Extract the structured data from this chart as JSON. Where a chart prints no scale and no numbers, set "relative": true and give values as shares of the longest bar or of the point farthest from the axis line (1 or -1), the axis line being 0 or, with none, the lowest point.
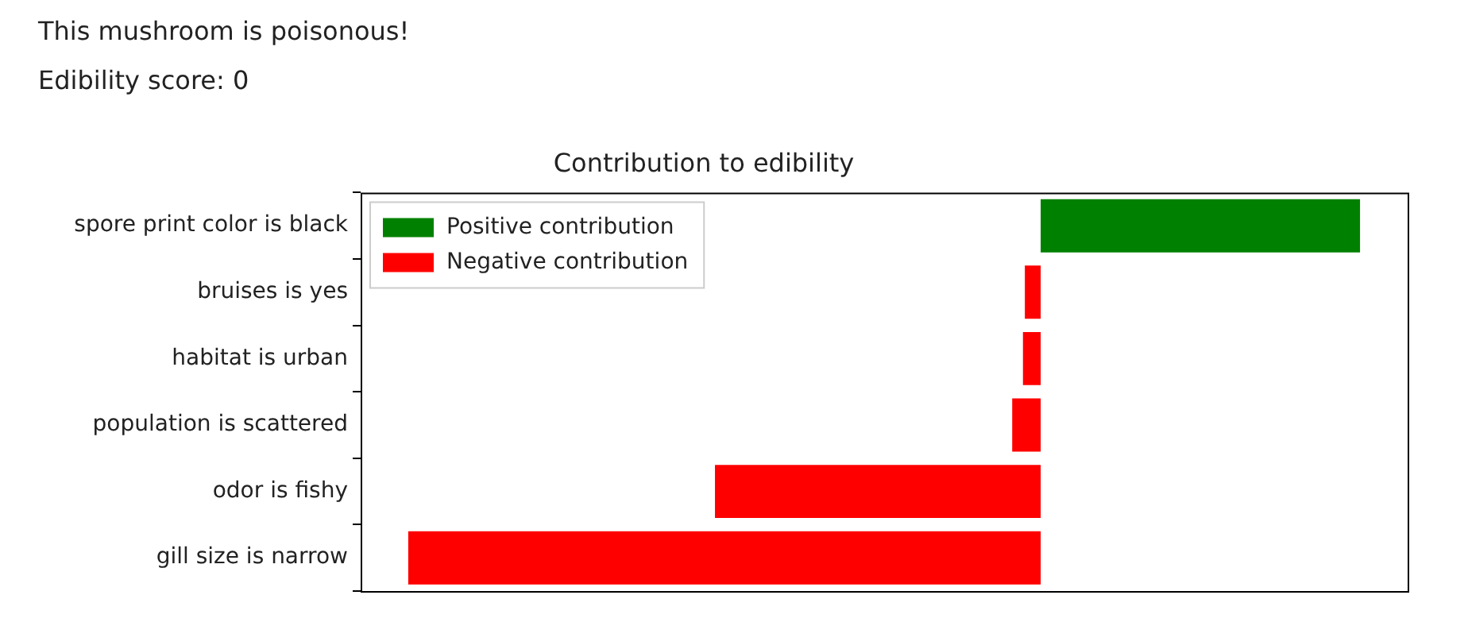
{
  "chart_data": {
    "type": "bar",
    "orientation": "horizontal",
    "stacked": true,
    "relative": true,
    "title": "Contribution to edibility",
    "annotations": [
      "This mushroom is poisonous!",
      "Edibility score: 0"
    ],
    "categories": [
      "spore print color is black",
      "bruises is yes",
      "habitat is urban",
      "population is scattered",
      "odor is fishy",
      "gill size is narrow"
    ],
    "series": [
      {
        "name": "Positive contribution",
        "color": "#008000",
        "values": [
          0.505,
          null,
          null,
          null,
          null,
          null
        ]
      },
      {
        "name": "Negative contribution",
        "color": "#ff0000",
        "values": [
          null,
          -0.025,
          -0.028,
          -0.045,
          -0.515,
          -1
        ]
      }
    ],
    "legend": "top left",
    "grid": false,
    "tick_labels": "y"
  }
}
